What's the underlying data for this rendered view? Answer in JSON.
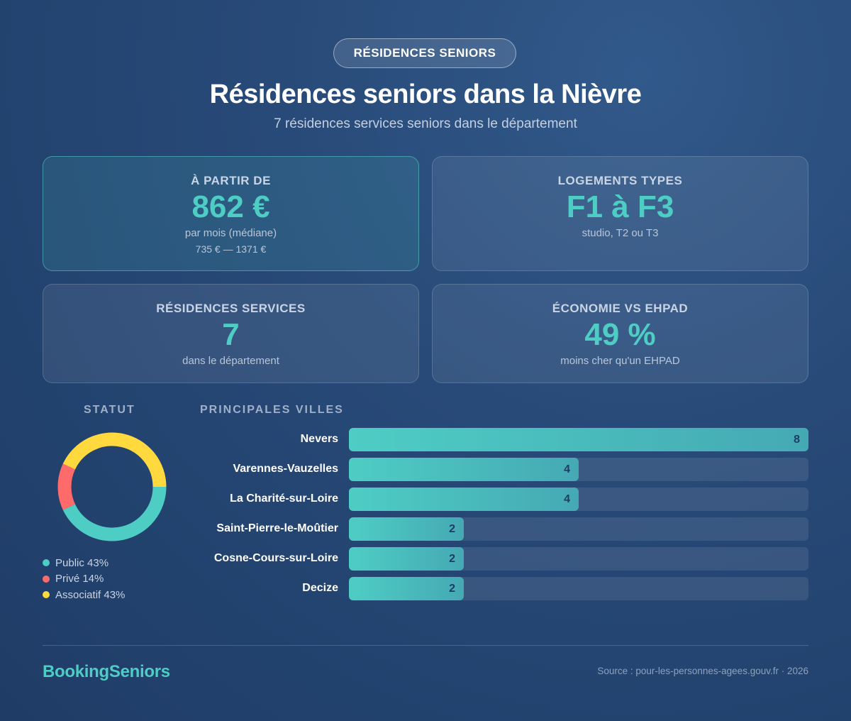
{
  "badge": "RÉSIDENCES SENIORS",
  "title": "Résidences seniors dans la Nièvre",
  "subtitle": "7 résidences services seniors dans le département",
  "cards": {
    "price": {
      "label": "À PARTIR DE",
      "value": "862 €",
      "note": "par mois (médiane)",
      "range": "735 € — 1371 €"
    },
    "housing": {
      "label": "LOGEMENTS TYPES",
      "value": "F1 à F3",
      "note": "studio, T2 ou T3"
    },
    "residences": {
      "label": "RÉSIDENCES SERVICES",
      "value": "7",
      "note": "dans le département"
    },
    "savings": {
      "label": "ÉCONOMIE VS EHPAD",
      "value": "49 %",
      "note": "moins cher qu'un EHPAD"
    }
  },
  "statut_label": "STATUT",
  "villes_label": "PRINCIPALES VILLES",
  "legend": [
    "Public 43%",
    "Privé 14%",
    "Associatif 43%"
  ],
  "colors": {
    "accent": "#4ecdc4",
    "public": "#4ecdc4",
    "prive": "#ff6b6b",
    "associatif": "#ffd93d"
  },
  "chart_data": [
    {
      "type": "pie",
      "title": "STATUT",
      "categories": [
        "Public",
        "Privé",
        "Associatif"
      ],
      "values": [
        43,
        14,
        43
      ],
      "labels": [
        "Public 43%",
        "Privé 14%",
        "Associatif 43%"
      ],
      "colors": [
        "#4ecdc4",
        "#ff6b6b",
        "#ffd93d"
      ],
      "legend": "bottom"
    },
    {
      "type": "bar",
      "orientation": "horizontal",
      "title": "PRINCIPALES VILLES",
      "categories": [
        "Nevers",
        "Varennes-Vauzelles",
        "La Charité-sur-Loire",
        "Saint-Pierre-le-Moûtier",
        "Cosne-Cours-sur-Loire",
        "Decize"
      ],
      "values": [
        8,
        4,
        4,
        2,
        2,
        2
      ],
      "xlim": [
        0,
        8
      ]
    }
  ],
  "footer": {
    "brand": "BookingSeniors",
    "source": "Source : pour-les-personnes-agees.gouv.fr · 2026"
  }
}
